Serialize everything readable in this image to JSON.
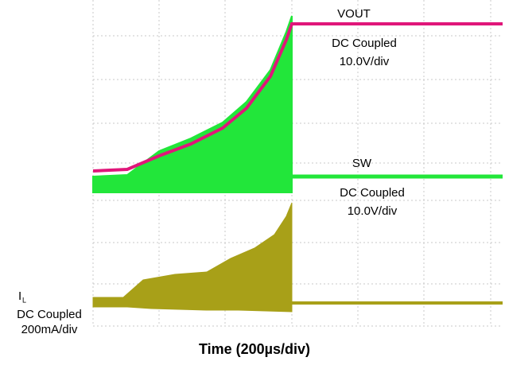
{
  "traces": {
    "vout": {
      "name": "VOUT",
      "coupling": "DC Coupled",
      "scale": "10.0V/div"
    },
    "sw": {
      "name": "SW",
      "coupling": "DC Coupled",
      "scale": "10.0V/div"
    },
    "il": {
      "name": "I",
      "subscript": "L",
      "coupling": "DC Coupled",
      "scale": "200mA/div"
    }
  },
  "x_axis_label": "Time (200µs/div)"
}
